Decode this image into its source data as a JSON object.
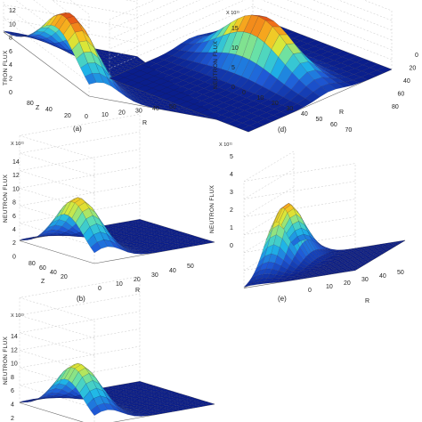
{
  "chart_data": [
    {
      "type": "surface3d",
      "caption": "(a)",
      "ylabel": "NEUTRON FLUX",
      "ylabel_visible": "TRON FLUX",
      "xlabel": "R",
      "zlabel": "Z",
      "scale": "",
      "yticks": [
        "12",
        "10",
        "8",
        "6",
        "4",
        "2",
        "0"
      ],
      "r_ticks": [
        "0",
        "10",
        "20",
        "30",
        "40",
        "50"
      ],
      "z_ticks": [
        "80",
        "40",
        "20"
      ],
      "peak": 11,
      "peak_r": 5,
      "peak_z": 30
    },
    {
      "type": "surface3d",
      "caption": "(b)",
      "ylabel": "NEUTRON FLUX",
      "xlabel": "R",
      "zlabel": "Z",
      "scale": "X 10¹¹",
      "yticks": [
        "14",
        "12",
        "10",
        "8",
        "6",
        "4",
        "2",
        "0"
      ],
      "r_ticks": [
        "0",
        "10",
        "20",
        "30",
        "40",
        "50"
      ],
      "z_ticks": [
        "80",
        "60",
        "40",
        "20"
      ],
      "peak": 10,
      "peak_r": 5,
      "peak_z": 30
    },
    {
      "type": "surface3d",
      "caption": "",
      "ylabel": "NEUTRON FLUX",
      "xlabel": "",
      "zlabel": "",
      "scale": "X 10¹¹",
      "yticks": [
        "14",
        "12",
        "10",
        "8",
        "6",
        "4",
        "2"
      ],
      "r_ticks": [],
      "z_ticks": [],
      "peak": 9,
      "peak_r": 5,
      "peak_z": 30
    },
    {
      "type": "surface3d",
      "caption": "(d)",
      "ylabel": "NEUTRON FLUX",
      "xlabel": "R",
      "zlabel": "",
      "scale": "X 10¹¹",
      "yticks": [
        "15",
        "10",
        "5",
        "0"
      ],
      "r_ticks": [
        "0",
        "10",
        "20",
        "30",
        "40",
        "50",
        "60",
        "70"
      ],
      "z_ticks": [
        "0",
        "20",
        "40",
        "60",
        "80"
      ],
      "peak": 14,
      "peak_r": 30,
      "peak_z": 40
    },
    {
      "type": "surface3d",
      "caption": "(e)",
      "ylabel": "NEUTRON FLUX",
      "xlabel": "R",
      "zlabel": "",
      "scale": "X 10¹¹",
      "yticks": [
        "5",
        "4",
        "3",
        "2",
        "1",
        "0"
      ],
      "r_ticks": [
        "0",
        "10",
        "20",
        "30",
        "40",
        "50"
      ],
      "z_ticks": [],
      "peak": 4,
      "peak_r": 5,
      "peak_z": 30
    }
  ]
}
